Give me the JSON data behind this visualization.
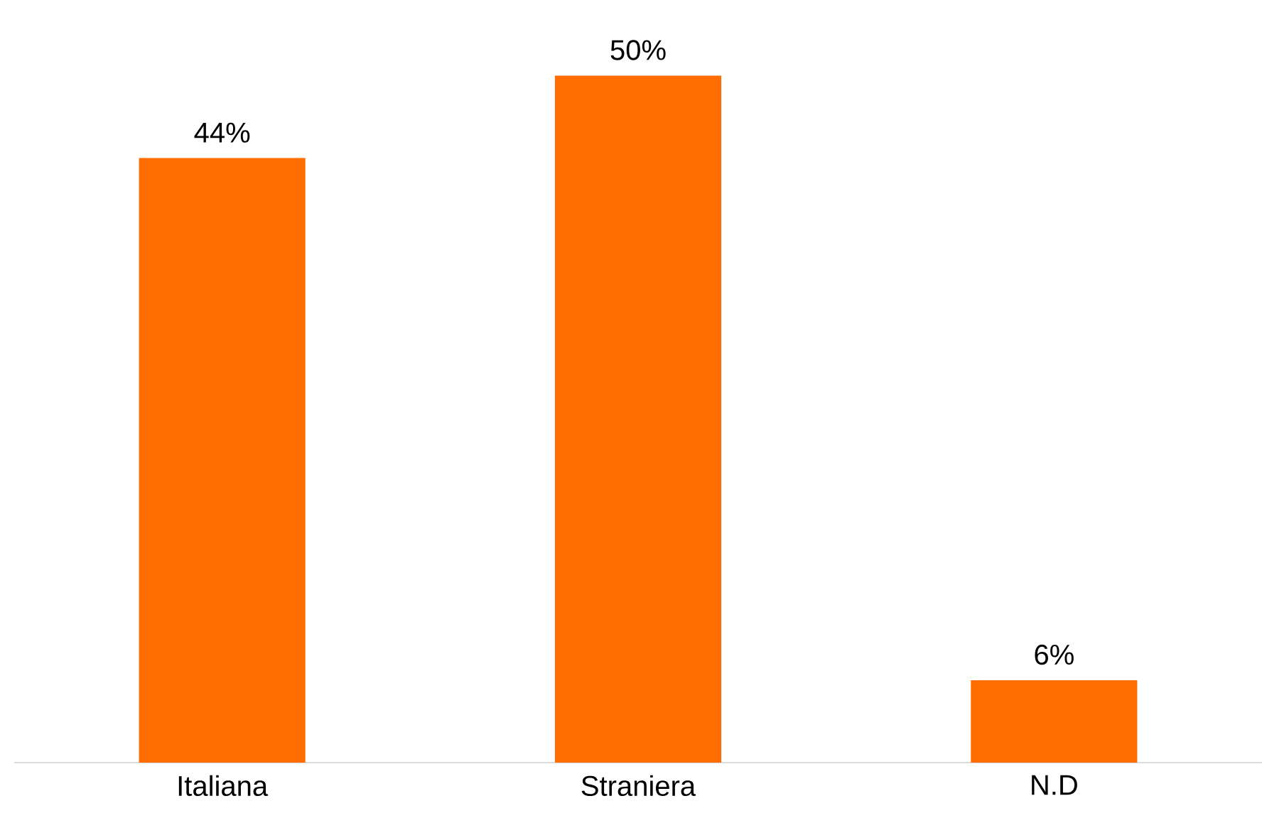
{
  "chart_data": {
    "type": "bar",
    "categories": [
      "Italiana",
      "Straniera",
      "N.D"
    ],
    "values": [
      44,
      50,
      6
    ],
    "value_labels": [
      "44%",
      "50%",
      "6%"
    ],
    "color": "#ff6d00"
  }
}
